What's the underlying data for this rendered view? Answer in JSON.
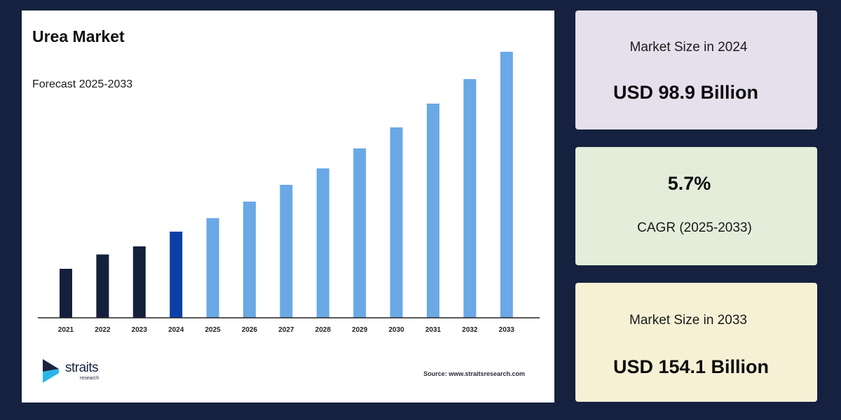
{
  "chart_data": {
    "type": "bar",
    "title": "Urea Market",
    "subtitle": "Forecast 2025-2033",
    "categories": [
      "2021",
      "2022",
      "2023",
      "2024",
      "2025",
      "2026",
      "2027",
      "2028",
      "2029",
      "2030",
      "2031",
      "2032",
      "2033"
    ],
    "values": [
      70.0,
      90.5,
      102.0,
      123.1,
      142.4,
      166.0,
      190.0,
      213.5,
      242.0,
      272.0,
      306.0,
      341.0,
      380.0
    ],
    "value_unit": "relative bar height (no y-axis printed)",
    "ylim": [
      0,
      400
    ],
    "grid": false,
    "xlabel": "",
    "ylabel": "",
    "colors": {
      "historical": "#15203d",
      "base_year": "#0a3fa8",
      "forecast": "#6aa8e6",
      "axis": "#222222"
    },
    "bar_style": [
      "historical",
      "historical",
      "historical",
      "base_year",
      "forecast",
      "forecast",
      "forecast",
      "forecast",
      "forecast",
      "forecast",
      "forecast",
      "forecast",
      "forecast"
    ]
  },
  "brand": {
    "name": "straits",
    "sub": "research",
    "logo_icon": "straits-chevron-icon"
  },
  "source": "Source: www.straitsresearch.com",
  "stats": {
    "card1": {
      "label": "Market Size in 2024",
      "value": "USD 98.9 Billion"
    },
    "card2": {
      "value": "5.7%",
      "label": "CAGR (2025-2033)"
    },
    "card3": {
      "label": "Market Size in 2033",
      "value": "USD 154.1 Billion"
    }
  }
}
